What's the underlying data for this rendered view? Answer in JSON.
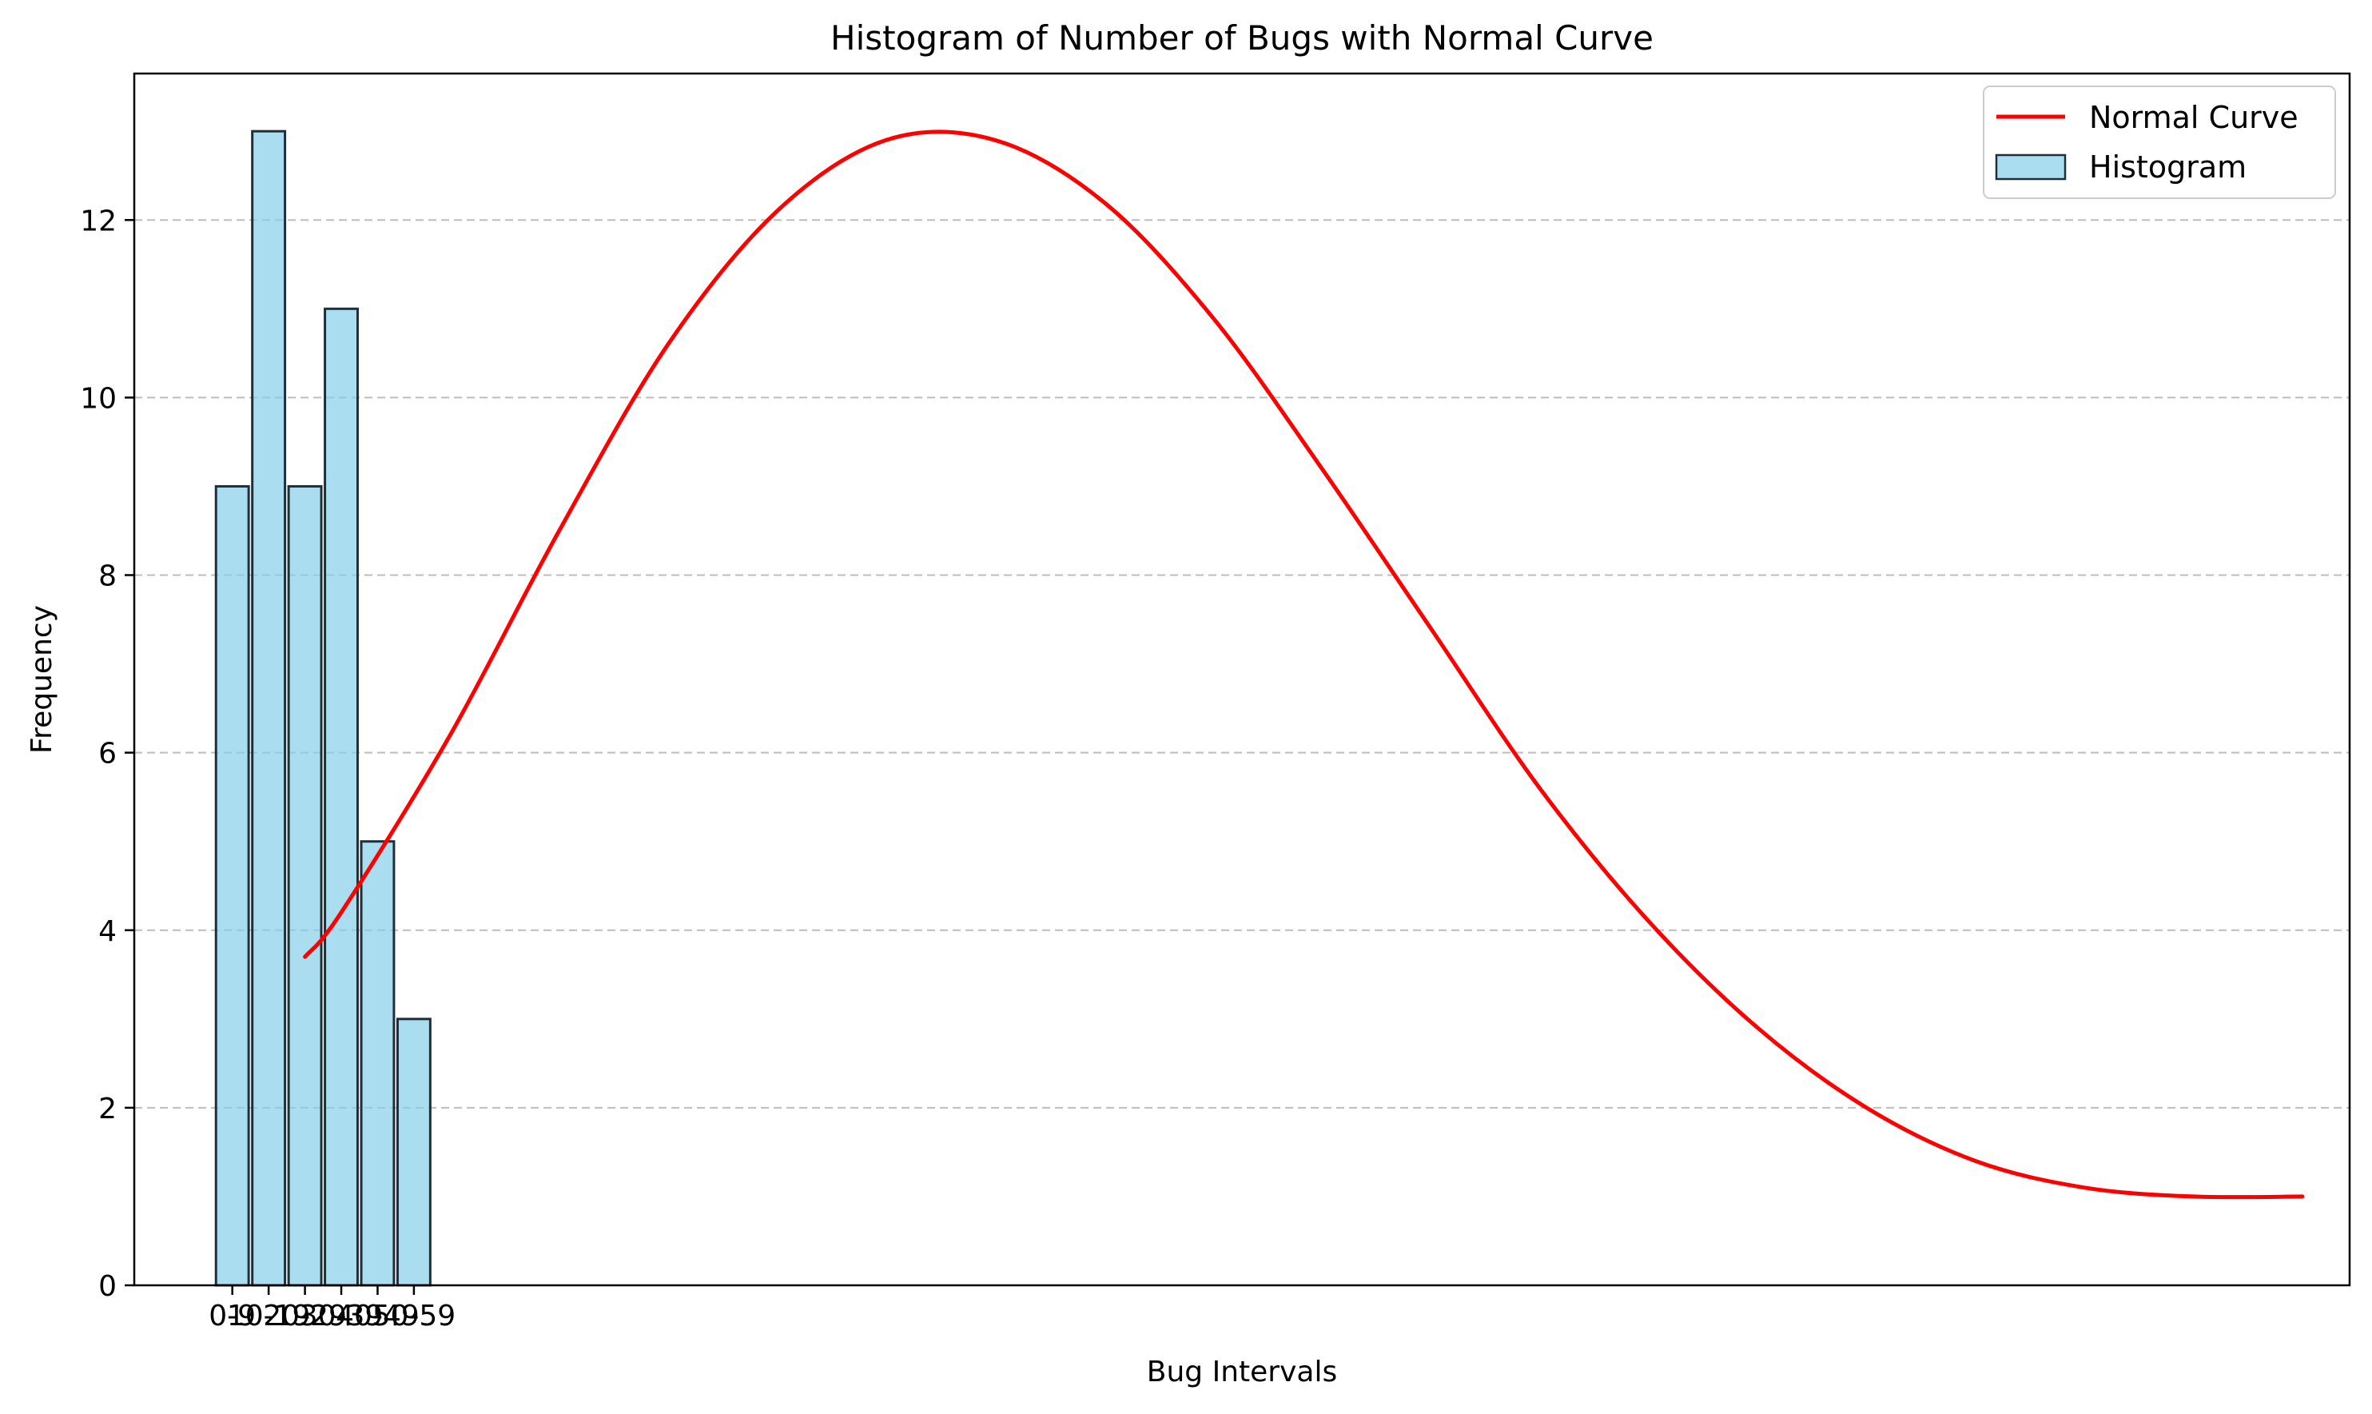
{
  "chart_data": {
    "type": "bar",
    "title": "Histogram of Number of Bugs with Normal Curve",
    "xlabel": "Bug Intervals",
    "ylabel": "Frequency",
    "categories": [
      "0-9",
      "10-19",
      "20-29",
      "30-39",
      "40-49",
      "50-59"
    ],
    "series": [
      {
        "name": "Histogram",
        "type": "bar",
        "values": [
          9,
          13,
          9,
          11,
          5,
          3
        ],
        "color": "#87ceeb",
        "edge_color": "#1f2f3a"
      },
      {
        "name": "Normal Curve",
        "type": "line",
        "color": "#ff0000",
        "x": [
          2.5,
          3.5,
          6.5,
          9.5,
          12.5,
          15.5,
          18.5,
          21.5,
          24.5,
          27.5,
          30.5,
          33.5,
          36.5,
          39.5,
          42.5,
          45.5,
          48.5,
          51.5,
          54.5,
          57.5
        ],
        "y": [
          3.7,
          4.2,
          6.2,
          8.5,
          10.6,
          12.1,
          12.9,
          12.9,
          12.2,
          10.9,
          9.2,
          7.4,
          5.6,
          4.1,
          2.9,
          2.0,
          1.4,
          1.1,
          1.0,
          1.0
        ]
      }
    ],
    "ylim": [
      0,
      13.65
    ],
    "yticks": [
      0,
      2,
      4,
      6,
      8,
      10,
      12
    ],
    "xticks": [
      0.5,
      1.5,
      2.5,
      3.5,
      4.5,
      5.5
    ],
    "grid": "y-dashed",
    "legend": "top-right"
  }
}
